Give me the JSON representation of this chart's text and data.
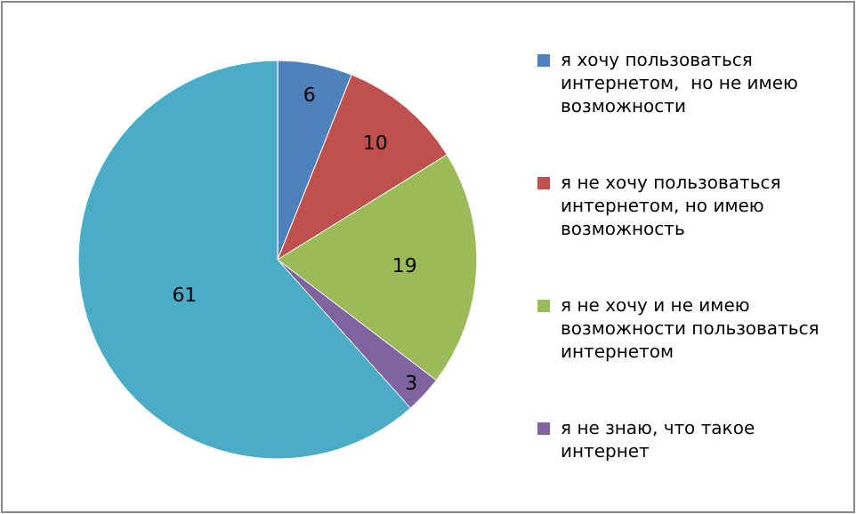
{
  "chart_data": {
    "type": "pie",
    "categories": [
      "я хочу пользоваться интернетом,  но не имею возможности",
      "я не хочу пользоваться интернетом, но имею возможность",
      "я не хочу и не имею возможности пользоваться интернетом",
      "я не знаю, что такое интернет",
      null
    ],
    "values": [
      6,
      10,
      19,
      3,
      61
    ],
    "colors": [
      "#4f81bd",
      "#c0504d",
      "#9bbb59",
      "#8064a2",
      "#4bacc6"
    ],
    "data_labels": true,
    "legend": "right"
  }
}
